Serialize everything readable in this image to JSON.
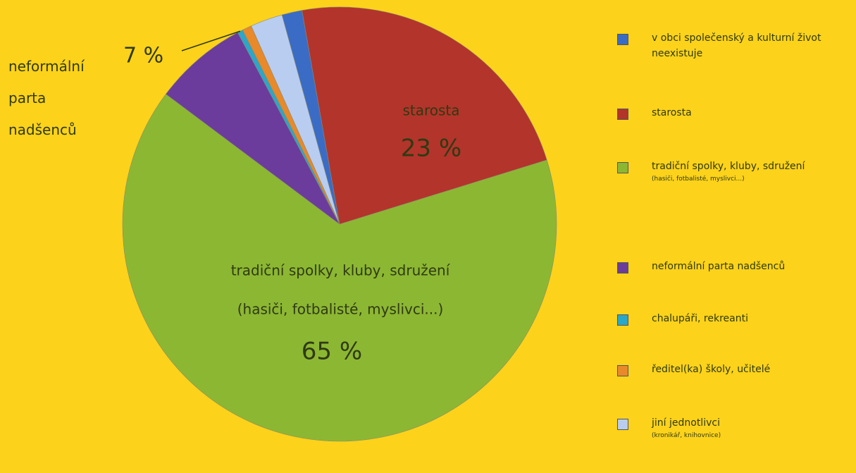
{
  "chart_data": {
    "type": "pie",
    "categories": [
      "v obci společenský a kulturní život neexistuje",
      "starosta",
      "tradiční spolky, kluby, sdružení",
      "neformální parta nadšenců",
      "chalupáři, rekreanti",
      "ředitel(ka) školy, učitelé",
      "jiní jednotlivci"
    ],
    "category_notes": [
      null,
      null,
      "(hasiči, fotbalisté, myslivci...)",
      null,
      null,
      null,
      "(kronikář, knihovnice)"
    ],
    "values": [
      1.5,
      23,
      65,
      7,
      0.4,
      0.7,
      2.4
    ],
    "value_labels": [
      null,
      "23 %",
      "65 %",
      "7 %",
      null,
      null,
      null
    ],
    "colors": [
      "#3a6cc6",
      "#b3342b",
      "#8cb733",
      "#6b3c9c",
      "#2aa7c9",
      "#e8892a",
      "#b9cdf1"
    ],
    "legend": "right"
  }
}
